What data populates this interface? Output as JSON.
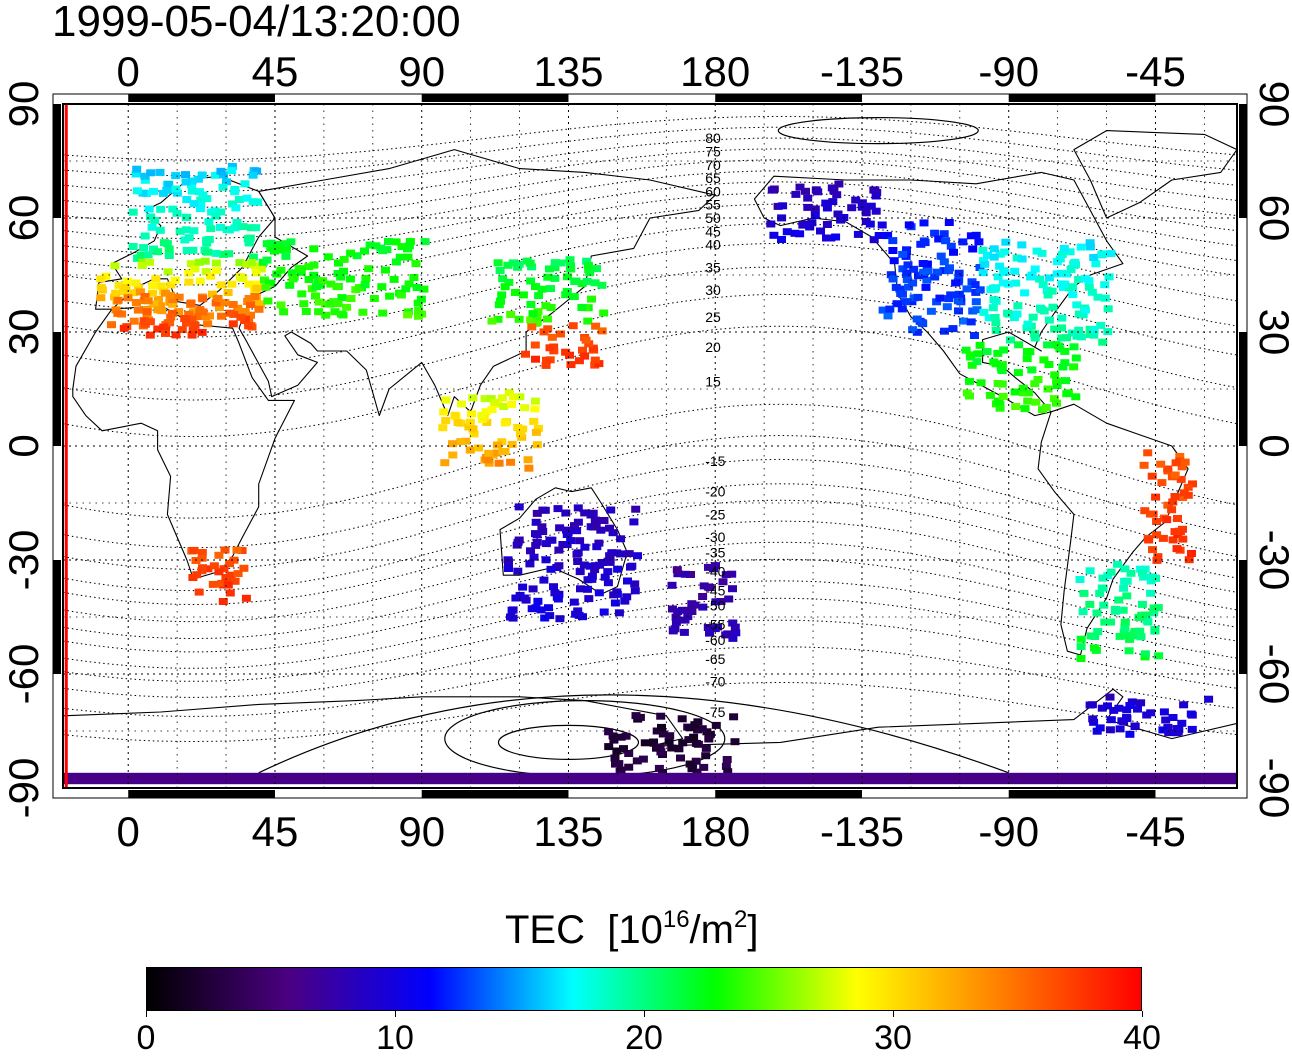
{
  "title": "1999-05-04/13:20:00",
  "map": {
    "projection": "equirectangular",
    "lon_center": 180,
    "lon_range_left_to_right": [
      -20,
      340
    ],
    "lat_range": [
      -90,
      90
    ],
    "lon_tick_values": [
      0,
      45,
      90,
      135,
      180,
      225,
      270,
      315
    ],
    "lon_tick_labels": [
      "0",
      "45",
      "90",
      "135",
      "180",
      "-135",
      "-90",
      "-45"
    ],
    "lat_tick_labels": [
      "90",
      "60",
      "30",
      "0",
      "-30",
      "-60",
      "-90"
    ],
    "lat_tick_values": [
      90,
      60,
      30,
      0,
      -30,
      -60,
      -90
    ],
    "grid": true,
    "gridline_style": "dotted",
    "contour_labels": [
      "80",
      "75",
      "70",
      "65",
      "60",
      "55",
      "50",
      "45",
      "40",
      "35",
      "30",
      "25",
      "20",
      "15",
      "-15",
      "-20",
      "-25",
      "-30",
      "-35",
      "-40",
      "-45",
      "-50",
      "-55",
      "-60",
      "-65",
      "-70",
      "-75"
    ],
    "contour_label_lats": [
      81,
      77.5,
      74,
      70.5,
      67,
      63.5,
      60,
      56.5,
      53,
      47,
      41,
      34,
      26,
      17,
      -4,
      -12,
      -18,
      -24,
      -28,
      -33,
      -38,
      -42,
      -47,
      -51,
      -56,
      -62,
      -70
    ]
  },
  "colorbar": {
    "label": "TEC",
    "unit_prefix": "[10",
    "unit_exp1": "16",
    "unit_mid": "/m",
    "unit_exp2": "2",
    "unit_suffix": "]",
    "min": 0,
    "max": 40,
    "tick_values": [
      0,
      10,
      20,
      30,
      40
    ],
    "tick_labels": [
      "0",
      "10",
      "20",
      "30",
      "40"
    ],
    "colormap": [
      "#000000",
      "#4b0082",
      "#0000ff",
      "#00ffff",
      "#00ff00",
      "#ffff00",
      "#ff8000",
      "#ff0000"
    ]
  },
  "tec_regions": [
    {
      "name": "europe-north",
      "lon": [
        0,
        40
      ],
      "lat": [
        50,
        75
      ],
      "tec": [
        20,
        16
      ]
    },
    {
      "name": "europe-south",
      "lon": [
        -10,
        40
      ],
      "lat": [
        32,
        50
      ],
      "tec": [
        36,
        26
      ]
    },
    {
      "name": "mediterranean",
      "lon": [
        -5,
        40
      ],
      "lat": [
        30,
        42
      ],
      "tec": [
        38,
        34
      ]
    },
    {
      "name": "central-asia",
      "lon": [
        40,
        90
      ],
      "lat": [
        35,
        55
      ],
      "tec": [
        24,
        22
      ]
    },
    {
      "name": "east-asia-north",
      "lon": [
        110,
        145
      ],
      "lat": [
        33,
        50
      ],
      "tec": [
        24,
        21
      ]
    },
    {
      "name": "east-asia-south",
      "lon": [
        120,
        145
      ],
      "lat": [
        22,
        33
      ],
      "tec": [
        38,
        36
      ]
    },
    {
      "name": "southeast-asia",
      "lon": [
        95,
        125
      ],
      "lat": [
        -5,
        15
      ],
      "tec": [
        34,
        27
      ]
    },
    {
      "name": "australia",
      "lon": [
        115,
        155
      ],
      "lat": [
        -45,
        -15
      ],
      "tec": [
        10,
        8
      ]
    },
    {
      "name": "new-zealand",
      "lon": [
        165,
        185
      ],
      "lat": [
        -50,
        -30
      ],
      "tec": [
        8,
        7
      ]
    },
    {
      "name": "alaska",
      "lon": [
        195,
        230
      ],
      "lat": [
        55,
        70
      ],
      "tec": [
        10,
        8
      ]
    },
    {
      "name": "north-america-west",
      "lon": [
        230,
        260
      ],
      "lat": [
        30,
        60
      ],
      "tec": [
        13,
        12
      ]
    },
    {
      "name": "north-america-east",
      "lon": [
        260,
        300
      ],
      "lat": [
        28,
        55
      ],
      "tec": [
        19,
        17
      ]
    },
    {
      "name": "central-america",
      "lon": [
        255,
        290
      ],
      "lat": [
        10,
        28
      ],
      "tec": [
        24,
        22
      ]
    },
    {
      "name": "south-america-east",
      "lon": [
        310,
        325
      ],
      "lat": [
        -30,
        0
      ],
      "tec": [
        38,
        36
      ]
    },
    {
      "name": "south-america-south",
      "lon": [
        290,
        315
      ],
      "lat": [
        -55,
        -30
      ],
      "tec": [
        22,
        18
      ]
    },
    {
      "name": "southern-africa",
      "lon": [
        15,
        35
      ],
      "lat": [
        -40,
        -25
      ],
      "tec": [
        38,
        36
      ]
    },
    {
      "name": "antarctic-pacific",
      "lon": [
        145,
        185
      ],
      "lat": [
        -85,
        -70
      ],
      "tec": [
        3,
        2
      ]
    },
    {
      "name": "south-pacific-shelf",
      "lon": [
        290,
        330
      ],
      "lat": [
        -75,
        -65
      ],
      "tec": [
        10,
        9
      ]
    },
    {
      "name": "south-pole-band",
      "lon": [
        -20,
        340
      ],
      "lat": [
        -89,
        -86
      ],
      "tec": [
        6,
        5
      ]
    }
  ]
}
